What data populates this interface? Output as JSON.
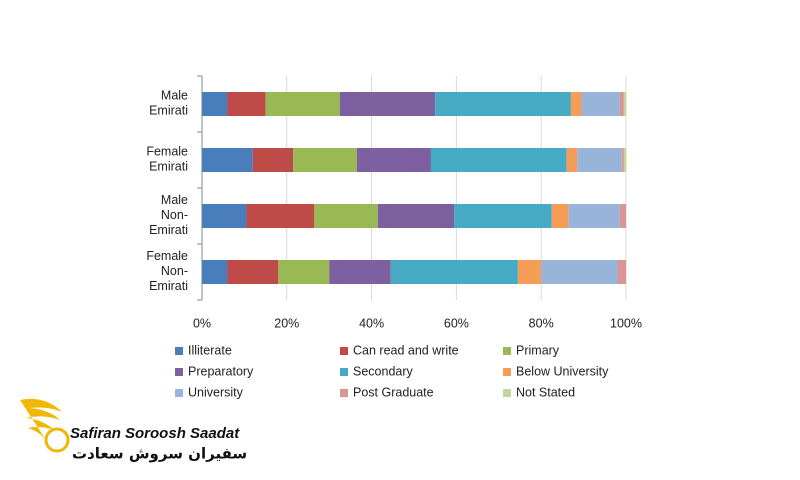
{
  "chart_data": {
    "type": "stacked_barh",
    "categories": [
      "Male Emirati",
      "Female Emirati",
      "Male Non-Emirati",
      "Female Non-Emirati"
    ],
    "series": [
      {
        "name": "Illiterate",
        "color": "#4a7ebb",
        "values": [
          6,
          12,
          10.5,
          6
        ]
      },
      {
        "name": "Can read and write",
        "color": "#be4b48",
        "values": [
          9,
          9.5,
          16,
          12
        ]
      },
      {
        "name": "Primary",
        "color": "#98b954",
        "values": [
          17.5,
          15,
          15,
          12
        ]
      },
      {
        "name": "Preparatory",
        "color": "#7d60a0",
        "values": [
          22.5,
          17.5,
          18,
          14.5
        ]
      },
      {
        "name": "Secondary",
        "color": "#46aac4",
        "values": [
          32,
          32,
          23,
          30
        ]
      },
      {
        "name": "Below University",
        "color": "#f59d56",
        "values": [
          2.5,
          2.5,
          4,
          5.5
        ]
      },
      {
        "name": "University",
        "color": "#99b4db",
        "values": [
          9,
          10.5,
          12,
          18
        ]
      },
      {
        "name": "Post Graduate",
        "color": "#d99694",
        "values": [
          1,
          0.5,
          1.5,
          2
        ]
      },
      {
        "name": "Not Stated",
        "color": "#c3d69b",
        "values": [
          0.5,
          0.5,
          0,
          0
        ]
      }
    ],
    "xlim": [
      0,
      100
    ],
    "xticks": [
      {
        "value": 0,
        "label": "0%"
      },
      {
        "value": 20,
        "label": "20%"
      },
      {
        "value": 40,
        "label": "40%"
      },
      {
        "value": 60,
        "label": "60%"
      },
      {
        "value": 80,
        "label": "80%"
      },
      {
        "value": 100,
        "label": "100%"
      }
    ],
    "grid": true
  },
  "logo": {
    "name": "Safiran Soroosh Saadat",
    "persian": "سفیران سروش سعادت"
  }
}
